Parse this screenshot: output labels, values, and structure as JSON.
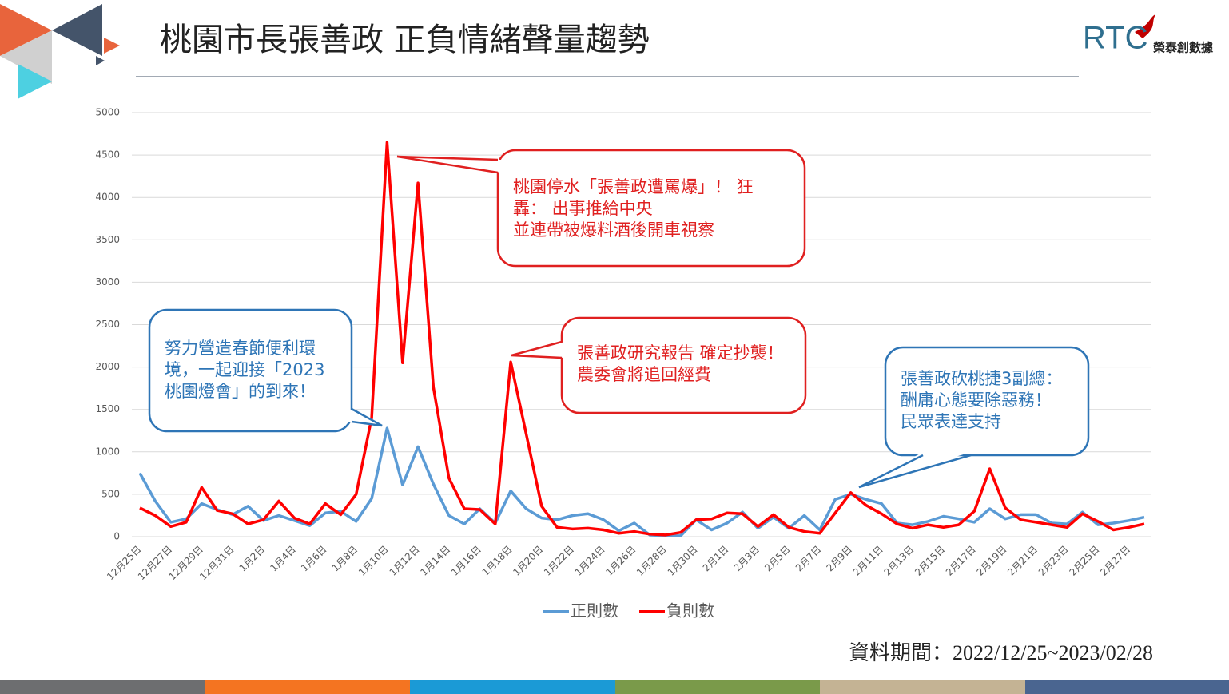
{
  "chart_data": {
    "type": "line",
    "title": "桃園市長張善政 正負情緒聲量趨勢",
    "categories": [
      "12月25日",
      null,
      "12月27日",
      null,
      "12月29日",
      null,
      "12月31日",
      null,
      "1月2日",
      null,
      "1月4日",
      null,
      "1月6日",
      null,
      "1月8日",
      null,
      "1月10日",
      null,
      "1月12日",
      null,
      "1月14日",
      null,
      "1月16日",
      null,
      "1月18日",
      null,
      "1月20日",
      null,
      "1月22日",
      null,
      "1月24日",
      null,
      "1月26日",
      null,
      "1月28日",
      null,
      "1月30日",
      null,
      "2月1日",
      null,
      "2月3日",
      null,
      "2月5日",
      null,
      "2月7日",
      null,
      "2月9日",
      null,
      "2月11日",
      null,
      "2月13日",
      null,
      "2月15日",
      null,
      "2月17日",
      null,
      "2月19日",
      null,
      "2月21日",
      null,
      "2月23日",
      null,
      "2月25日",
      null,
      "2月27日",
      null
    ],
    "series": [
      {
        "name": "正則數",
        "color": "#5b9bd5",
        "values": [
          750,
          420,
          170,
          210,
          390,
          320,
          260,
          360,
          190,
          250,
          190,
          130,
          280,
          300,
          180,
          450,
          1280,
          610,
          1060,
          620,
          250,
          150,
          330,
          160,
          540,
          330,
          220,
          200,
          250,
          270,
          200,
          70,
          160,
          20,
          10,
          10,
          200,
          80,
          160,
          290,
          100,
          230,
          100,
          250,
          80,
          440,
          500,
          440,
          390,
          160,
          140,
          180,
          240,
          210,
          170,
          330,
          210,
          260,
          260,
          160,
          150,
          290,
          140,
          160,
          190,
          230
        ]
      },
      {
        "name": "負則數",
        "color": "#ff0000",
        "values": [
          340,
          250,
          120,
          170,
          580,
          310,
          270,
          150,
          200,
          420,
          220,
          150,
          390,
          260,
          500,
          1400,
          4650,
          2050,
          4170,
          1760,
          690,
          330,
          320,
          150,
          2060,
          1210,
          360,
          110,
          90,
          100,
          80,
          40,
          60,
          30,
          20,
          50,
          200,
          210,
          280,
          270,
          120,
          260,
          110,
          60,
          40,
          280,
          520,
          370,
          270,
          150,
          100,
          140,
          110,
          140,
          300,
          800,
          340,
          200,
          170,
          140,
          110,
          270,
          180,
          80,
          110,
          150
        ]
      }
    ],
    "ylim": [
      0,
      5000
    ],
    "yticks": [
      0,
      500,
      1000,
      1500,
      2000,
      2500,
      3000,
      3500,
      4000,
      4500,
      5000
    ],
    "grid": true,
    "legend": "bottom",
    "annotations": [
      {
        "color": "#2e75b6",
        "lines": [
          "努力營造春節便利環",
          "境，一起迎接「2023",
          "桃園燈會」的到來！"
        ]
      },
      {
        "color": "#e02020",
        "lines": [
          "桃園停水「張善政遭罵爆」！ 狂",
          "轟： 出事推給中央",
          "並連帶被爆料酒後開車視察"
        ]
      },
      {
        "color": "#e02020",
        "lines": [
          "張善政研究報告 確定抄襲！",
          "農委會將追回經費"
        ]
      },
      {
        "color": "#2e75b6",
        "lines": [
          "張善政砍桃捷3副總：",
          "酬庸心態要除惡務！",
          "民眾表達支持"
        ]
      }
    ]
  },
  "logo": {
    "mark": "RTC",
    "name": "榮泰創數據"
  },
  "footer": "資料期間：2022/12/25~2023/02/28"
}
